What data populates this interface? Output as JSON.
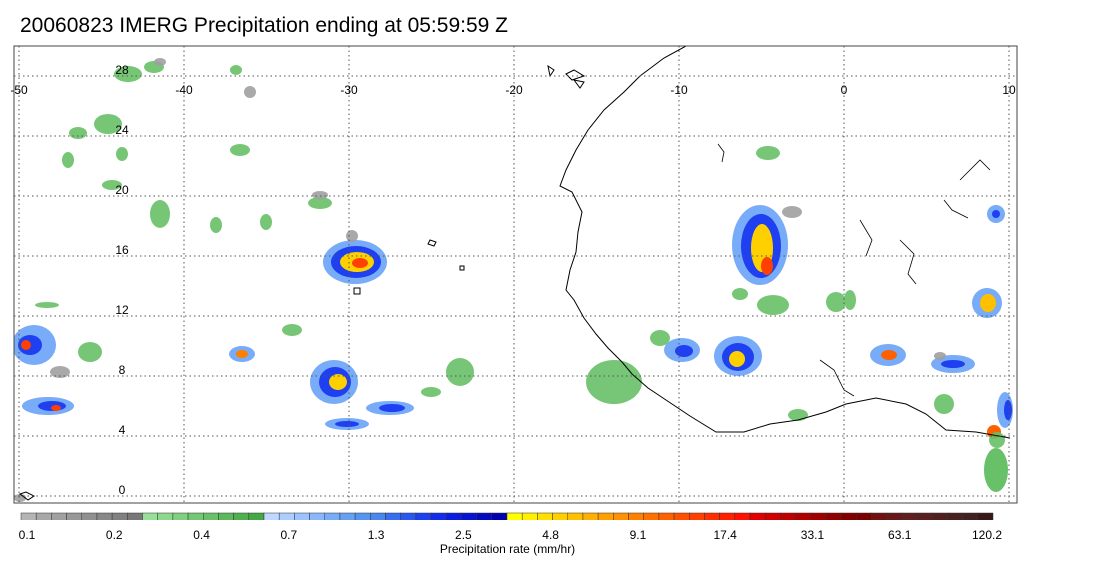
{
  "title": "20060823 IMERG Precipitation ending at 05:59:59 Z",
  "map": {
    "lon_range": [
      -50,
      10
    ],
    "lat_range": [
      -0.5,
      28.8
    ],
    "lon_labels": [
      "-50",
      "-40",
      "-30",
      "-20",
      "-10",
      "0",
      "10"
    ],
    "lat_labels": [
      "0",
      "4",
      "8",
      "12",
      "16",
      "20",
      "24",
      "28"
    ],
    "gridlines": true
  },
  "colorbar": {
    "ticks": [
      "0.1",
      "0.2",
      "0.4",
      "0.7",
      "1.3",
      "2.5",
      "4.8",
      "9.1",
      "17.4",
      "33.1",
      "63.1",
      "120.2"
    ],
    "label": "Precipitation rate (mm/hr)",
    "colors": [
      "#b4b4b4",
      "#a8a8a8",
      "#a0a0a0",
      "#989898",
      "#909090",
      "#888888",
      "#808080",
      "#787878",
      "#98e098",
      "#8cd88c",
      "#80d080",
      "#74c874",
      "#68c068",
      "#5cb85c",
      "#50b050",
      "#44a844",
      "#c0d8ff",
      "#aecdff",
      "#9cc2ff",
      "#8ab7fc",
      "#78acf8",
      "#66a0f4",
      "#5495f0",
      "#4a86ec",
      "#3a6cf0",
      "#2c56f0",
      "#1e40f0",
      "#142ce8",
      "#0c1ce0",
      "#0812d0",
      "#040ac0",
      "#0000b0",
      "#ffff00",
      "#fff000",
      "#ffe000",
      "#ffd000",
      "#ffc000",
      "#ffb000",
      "#ffa000",
      "#ff9000",
      "#ff8000",
      "#ff7000",
      "#ff6000",
      "#ff5000",
      "#ff4000",
      "#ff3000",
      "#ff2000",
      "#ff1000",
      "#e00000",
      "#d00000",
      "#c00000",
      "#b00000",
      "#a00000",
      "#900000",
      "#800000",
      "#780000",
      "#701010",
      "#681818",
      "#602020",
      "#582020",
      "#502020",
      "#482020",
      "#402020",
      "#381818"
    ]
  }
}
